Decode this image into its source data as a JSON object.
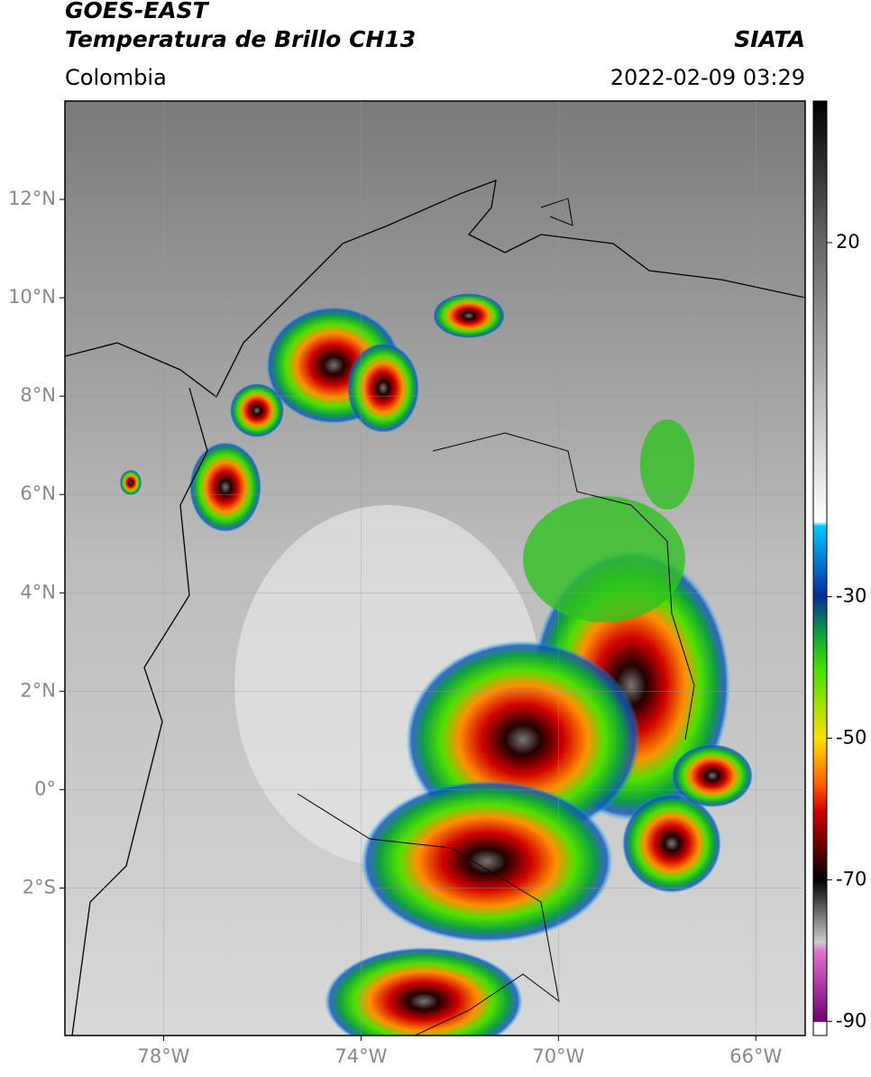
{
  "header": {
    "title_line1": "GOES-EAST",
    "title_line2": "Temperatura de Brillo CH13",
    "region": "Colombia",
    "source": "SIATA",
    "datetime": "2022-02-09 03:29"
  },
  "map": {
    "xlim": [
      -80,
      -65
    ],
    "ylim": [
      -5,
      14
    ],
    "xticks": [
      {
        "value": -78,
        "label": "78°W"
      },
      {
        "value": -74,
        "label": "74°W"
      },
      {
        "value": -70,
        "label": "70°W"
      },
      {
        "value": -66,
        "label": "66°W"
      }
    ],
    "yticks": [
      {
        "value": 12,
        "label": "12°N"
      },
      {
        "value": 10,
        "label": "10°N"
      },
      {
        "value": 8,
        "label": "8°N"
      },
      {
        "value": 6,
        "label": "6°N"
      },
      {
        "value": 4,
        "label": "4°N"
      },
      {
        "value": 2,
        "label": "2°N"
      },
      {
        "value": 0,
        "label": "0°"
      },
      {
        "value": -2,
        "label": "2°S"
      }
    ]
  },
  "colorbar": {
    "lim": [
      -92,
      40
    ],
    "ticks": [
      20,
      -30,
      -50,
      -70,
      -90
    ]
  }
}
